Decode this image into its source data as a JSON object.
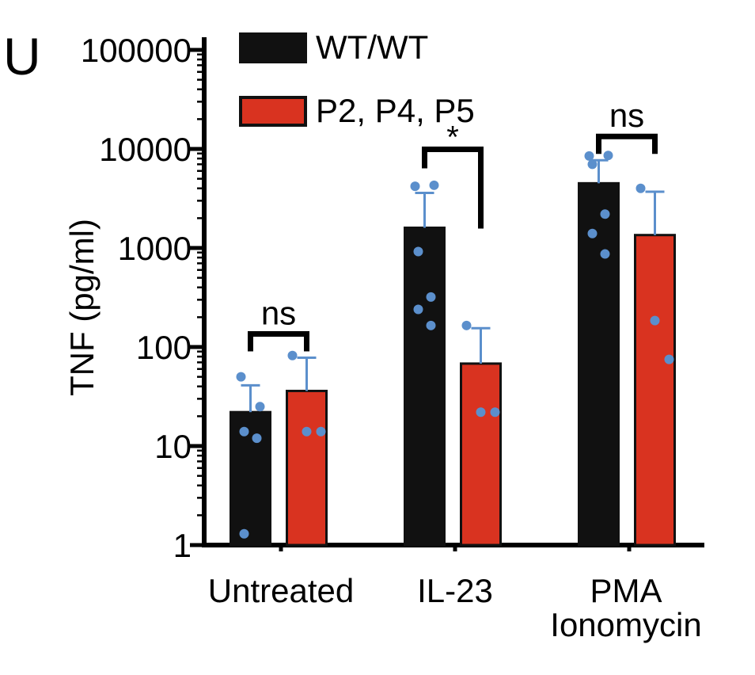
{
  "panel_label": "U",
  "chart_data": {
    "type": "bar",
    "ylabel": "TNF (pg/ml)",
    "yscale": "log",
    "ylim": [
      1,
      100000
    ],
    "yticks": [
      "1",
      "10",
      "100",
      "1000",
      "10000",
      "100000"
    ],
    "categories": [
      {
        "lines": [
          "Untreated"
        ]
      },
      {
        "lines": [
          "IL-23"
        ]
      },
      {
        "lines": [
          "PMA",
          "Ionomycin"
        ]
      }
    ],
    "legend": {
      "position": "top-center"
    },
    "colors": {
      "wt": "#111111",
      "patient": "#d93320",
      "dots": "#5b8fcc"
    },
    "series": [
      {
        "name": "WT/WT",
        "color": "#111111",
        "values": [
          22,
          1600,
          4500
        ],
        "error_upper": [
          41,
          3600,
          7700
        ],
        "points": [
          [
            50,
            25,
            14,
            12,
            1.3
          ],
          [
            4200,
            4300,
            920,
            320,
            240,
            165
          ],
          [
            8500,
            8600,
            7000,
            2200,
            1400,
            870
          ]
        ]
      },
      {
        "name": "P2, P4, P5",
        "color": "#d93320",
        "values": [
          36,
          68,
          1350
        ],
        "error_upper": [
          78,
          155,
          3700
        ],
        "points": [
          [
            82,
            14,
            14
          ],
          [
            165,
            22,
            22
          ],
          [
            4000,
            185,
            75
          ]
        ]
      }
    ],
    "significance": [
      {
        "category": 0,
        "label": "ns"
      },
      {
        "category": 1,
        "label": "*"
      },
      {
        "category": 2,
        "label": "ns"
      }
    ]
  }
}
